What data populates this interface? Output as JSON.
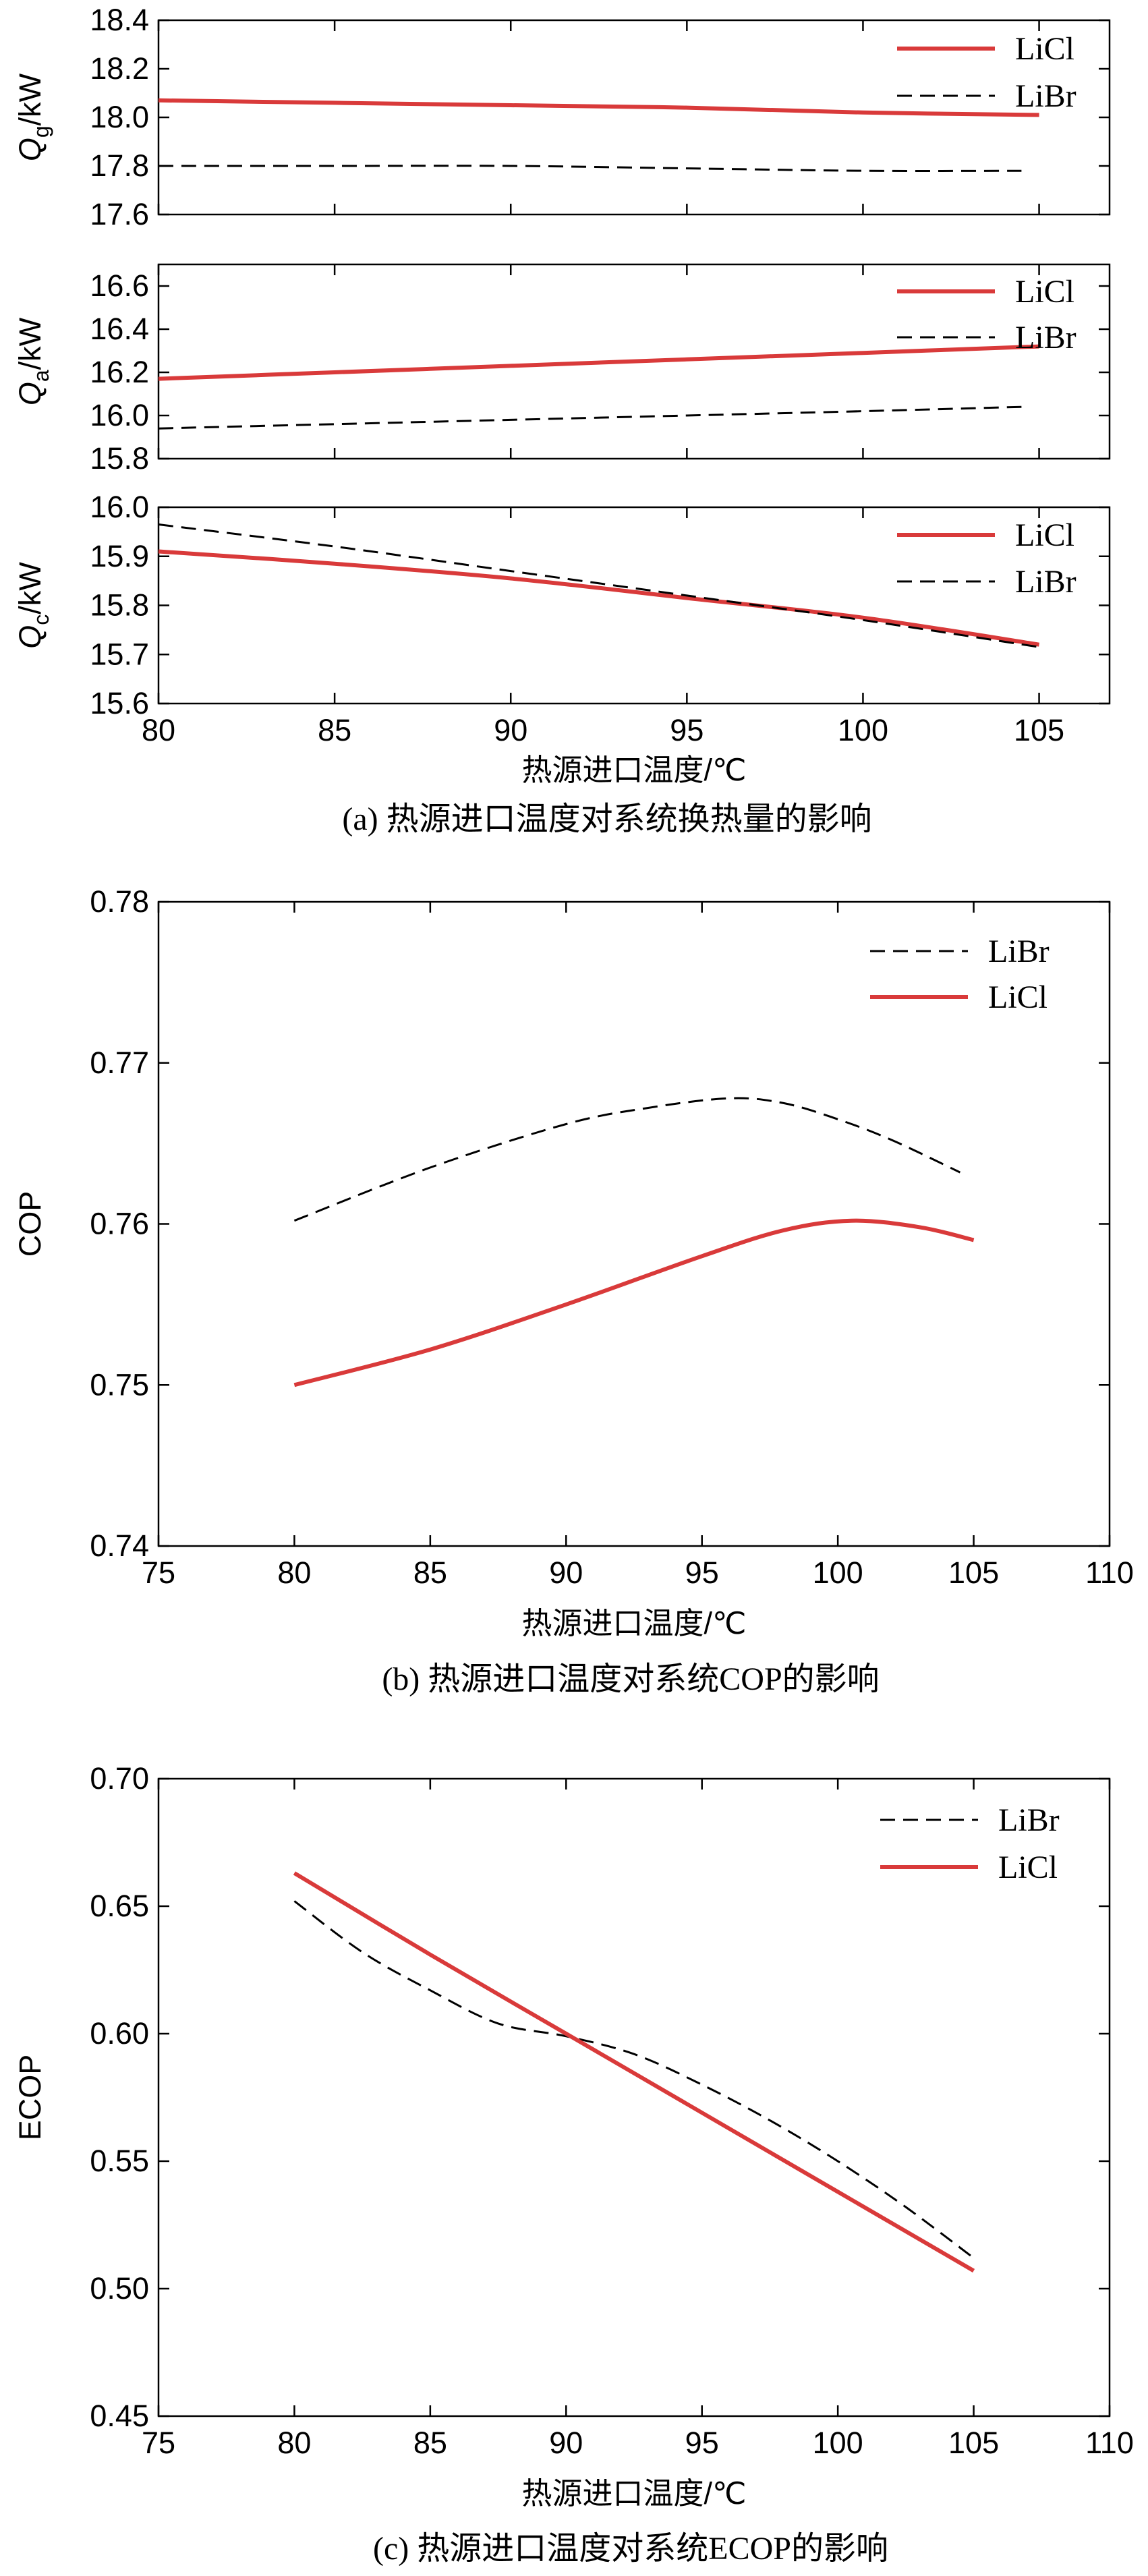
{
  "figure": {
    "captions": {
      "a": "(a) 热源进口温度对系统换热量的影响",
      "b": "(b) 热源进口温度对系统COP的影响",
      "c": "(c) 热源进口温度对系统ECOP的影响"
    }
  },
  "colors": {
    "LiCl": "#d93a3a",
    "LiBr": "#000000"
  },
  "chart_data": [
    {
      "id": "a1",
      "type": "line",
      "ylabel": {
        "base": "Q",
        "sub": "g",
        "unit": "/kW"
      },
      "xlim": [
        80,
        107
      ],
      "ylim": [
        17.6,
        18.4
      ],
      "yticks": [
        "17.6",
        "17.8",
        "18.0",
        "18.2",
        "18.4"
      ],
      "series": [
        {
          "name": "LiCl",
          "style": "solid",
          "x": [
            80,
            85,
            90,
            95,
            100,
            105
          ],
          "y": [
            18.07,
            18.06,
            18.05,
            18.04,
            18.02,
            18.01
          ]
        },
        {
          "name": "LiBr",
          "style": "dashed",
          "x": [
            80,
            85,
            90,
            95,
            100,
            104.5
          ],
          "y": [
            17.8,
            17.8,
            17.8,
            17.79,
            17.78,
            17.78
          ]
        }
      ]
    },
    {
      "id": "a2",
      "type": "line",
      "ylabel": {
        "base": "Q",
        "sub": "a",
        "unit": "/kW"
      },
      "xlim": [
        80,
        107
      ],
      "ylim": [
        15.8,
        16.7
      ],
      "yticks": [
        "15.8",
        "16.0",
        "16.2",
        "16.4",
        "16.6"
      ],
      "series": [
        {
          "name": "LiCl",
          "style": "solid",
          "x": [
            80,
            85,
            90,
            95,
            100,
            105
          ],
          "y": [
            16.17,
            16.2,
            16.23,
            16.26,
            16.29,
            16.32
          ]
        },
        {
          "name": "LiBr",
          "style": "dashed",
          "x": [
            80,
            85,
            90,
            95,
            100,
            104.5
          ],
          "y": [
            15.94,
            15.96,
            15.98,
            16.0,
            16.02,
            16.04
          ]
        }
      ]
    },
    {
      "id": "a3",
      "type": "line",
      "ylabel": {
        "base": "Q",
        "sub": "c",
        "unit": "/kW"
      },
      "xlabel": "热源进口温度/℃",
      "xlim": [
        80,
        107
      ],
      "ylim": [
        15.6,
        16.0
      ],
      "xticks": [
        "80",
        "85",
        "90",
        "95",
        "100",
        "105"
      ],
      "yticks": [
        "15.6",
        "15.7",
        "15.8",
        "15.9",
        "16.0"
      ],
      "series": [
        {
          "name": "LiCl",
          "style": "solid",
          "x": [
            80,
            85,
            90,
            95,
            100,
            105
          ],
          "y": [
            15.91,
            15.885,
            15.855,
            15.815,
            15.775,
            15.72
          ]
        },
        {
          "name": "LiBr",
          "style": "dashed",
          "x": [
            80,
            85,
            90,
            95,
            100,
            105
          ],
          "y": [
            15.965,
            15.92,
            15.87,
            15.82,
            15.77,
            15.715
          ]
        }
      ]
    },
    {
      "id": "b",
      "type": "line",
      "ylabel": "COP",
      "xlabel": "热源进口温度/℃",
      "xlim": [
        75,
        110
      ],
      "ylim": [
        0.74,
        0.78
      ],
      "xticks": [
        "75",
        "80",
        "85",
        "90",
        "95",
        "100",
        "105",
        "110"
      ],
      "yticks": [
        "0.74",
        "0.75",
        "0.76",
        "0.77",
        "0.78"
      ],
      "series": [
        {
          "name": "LiBr",
          "style": "dashed",
          "x": [
            80,
            85,
            90,
            93,
            96,
            98,
            100,
            102,
            104.5
          ],
          "y": [
            0.7602,
            0.7635,
            0.7662,
            0.7672,
            0.7678,
            0.7675,
            0.7665,
            0.7652,
            0.7632
          ]
        },
        {
          "name": "LiCl",
          "style": "solid",
          "x": [
            80,
            85,
            90,
            95,
            98,
            100.5,
            103,
            105
          ],
          "y": [
            0.75,
            0.7522,
            0.755,
            0.758,
            0.7596,
            0.7602,
            0.7598,
            0.759
          ]
        }
      ]
    },
    {
      "id": "c",
      "type": "line",
      "ylabel": "ECOP",
      "xlabel": "热源进口温度/℃",
      "xlim": [
        75,
        110
      ],
      "ylim": [
        0.45,
        0.7
      ],
      "xticks": [
        "75",
        "80",
        "85",
        "90",
        "95",
        "100",
        "105",
        "110"
      ],
      "yticks": [
        "0.45",
        "0.50",
        "0.55",
        "0.60",
        "0.65",
        "0.70"
      ],
      "series": [
        {
          "name": "LiBr",
          "style": "dashed",
          "x": [
            80,
            82.5,
            85,
            87.5,
            90,
            92.5,
            95,
            97.5,
            100,
            102.5,
            105
          ],
          "y": [
            0.652,
            0.632,
            0.617,
            0.604,
            0.599,
            0.592,
            0.58,
            0.566,
            0.55,
            0.532,
            0.512
          ]
        },
        {
          "name": "LiCl",
          "style": "solid",
          "x": [
            80,
            85,
            90,
            95,
            100,
            105
          ],
          "y": [
            0.663,
            0.631,
            0.6,
            0.569,
            0.538,
            0.507
          ]
        }
      ]
    }
  ]
}
